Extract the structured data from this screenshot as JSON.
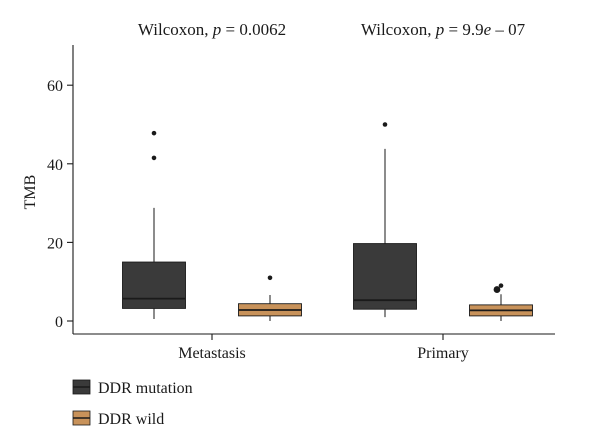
{
  "chart_data": {
    "type": "boxplot",
    "ylabel": "TMB",
    "ylim": [
      0,
      72
    ],
    "yticks": [
      0,
      20,
      40,
      60
    ],
    "categories": [
      "Metastasis",
      "Primary"
    ],
    "annotations": [
      {
        "prefix": "Wilcoxon, ",
        "p": "p",
        "eq": " = ",
        "value": "0.0062"
      },
      {
        "prefix": "Wilcoxon, ",
        "p": "p",
        "eq": " = ",
        "value": "9.9",
        "e": "e",
        "suffix": " – 07"
      }
    ],
    "legend": {
      "placement": "bottom-left",
      "entries": [
        "DDR mutation",
        "DDR wild"
      ]
    },
    "series": [
      {
        "name": "DDR mutation",
        "color": "#3a3a3a",
        "boxes": [
          {
            "min": 0.5,
            "q1": 3.2,
            "median": 5.7,
            "q3": 15.0,
            "max": 28.8,
            "outliers": [
              41.5,
              47.8
            ]
          },
          {
            "min": 1.0,
            "q1": 3.0,
            "median": 5.3,
            "q3": 19.7,
            "max": 43.8,
            "outliers": [
              50.0
            ]
          }
        ]
      },
      {
        "name": "DDR wild",
        "color": "#c8925a",
        "boxes": [
          {
            "min": 0.0,
            "q1": 1.3,
            "median": 2.8,
            "q3": 4.4,
            "max": 6.6,
            "outliers": [
              11.0
            ]
          },
          {
            "min": 0.0,
            "q1": 1.3,
            "median": 2.7,
            "q3": 4.1,
            "max": 6.8,
            "outliers": [
              8.0,
              9.0
            ]
          }
        ]
      }
    ]
  }
}
